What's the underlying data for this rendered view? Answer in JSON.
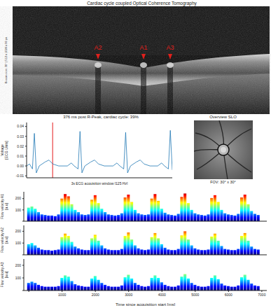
{
  "title": "Cardiac cycle coupled Optical Coherence Tomography",
  "oct_image": {
    "side_text": "B-scan size: 30° | 512 x 1024 x 96 px",
    "labels": [
      "A2",
      "A1",
      "A3"
    ]
  },
  "slo_image": {
    "title": "Overview SLO",
    "caption": "FOV: 30° x 30°"
  },
  "chart_data": [
    {
      "type": "line",
      "title": "376 ms post R-Peak, cardiac cycle: 39%",
      "x_label": "3s ECG acquisition window [125 Hz]",
      "y_label": "Voltage [ECG Units]",
      "x": [
        0,
        0.06,
        0.12,
        0.16,
        0.2,
        0.26,
        0.38,
        0.46,
        0.54,
        0.66,
        0.84,
        0.92,
        0.98,
        1.06,
        1.1,
        1.14,
        1.2,
        1.32,
        1.4,
        1.48,
        1.6,
        1.78,
        1.86,
        1.92,
        2.0,
        2.04,
        2.08,
        2.14,
        2.26,
        2.34,
        2.42,
        2.54,
        2.7,
        2.78,
        2.84,
        2.92,
        2.96,
        3.0
      ],
      "values": [
        0.0,
        0.002,
        -0.003,
        0.033,
        -0.007,
        0.0,
        0.004,
        0.006,
        0.002,
        0.0,
        0.0,
        0.003,
        0.0,
        -0.003,
        0.035,
        -0.007,
        0.0,
        0.004,
        0.006,
        0.002,
        0.0,
        0.0,
        0.003,
        0.0,
        -0.003,
        0.034,
        -0.007,
        0.0,
        0.004,
        0.006,
        0.002,
        0.0,
        0.0,
        0.003,
        0.0,
        -0.003,
        0.036,
        -0.004
      ],
      "color": "#1f77b4",
      "xlim": [
        0,
        3
      ],
      "ylim": [
        -0.012,
        0.044
      ],
      "yticks": [
        -0.01,
        {
          "value": 0,
          "label": "0.00"
        },
        0.01,
        0.02,
        0.03,
        0.04
      ],
      "tick_labels": "y",
      "marker_x": 0.536
    },
    {
      "type": "bar",
      "y_label": "Flow velocity A1 [a.u]",
      "x": [
        0,
        100,
        200,
        300,
        400,
        500,
        600,
        700,
        800,
        900,
        1000,
        1100,
        1200,
        1300,
        1400,
        1500,
        1600,
        1700,
        1800,
        1900,
        2000,
        2100,
        2200,
        2300,
        2400,
        2500,
        2600,
        2700,
        2800,
        2900,
        3000,
        3100,
        3200,
        3300,
        3400,
        3500,
        3600,
        3700,
        3800,
        3900,
        4000,
        4100,
        4200,
        4300,
        4400,
        4500,
        4600,
        4700,
        4800,
        4900,
        5000,
        5100,
        5200,
        5300,
        5400,
        5500,
        5600,
        5700,
        5800,
        5900,
        6000,
        6100,
        6200,
        6300,
        6400,
        6500,
        6600,
        6700,
        6800,
        6900
      ],
      "values": [
        120,
        130,
        110,
        80,
        60,
        55,
        50,
        50,
        45,
        60,
        200,
        240,
        220,
        150,
        100,
        80,
        60,
        55,
        60,
        190,
        230,
        160,
        110,
        80,
        60,
        55,
        50,
        55,
        70,
        210,
        235,
        170,
        100,
        70,
        60,
        55,
        60,
        200,
        240,
        180,
        110,
        75,
        60,
        55,
        50,
        65,
        215,
        245,
        160,
        100,
        70,
        60,
        55,
        50,
        60,
        205,
        230,
        170,
        100,
        70,
        60,
        55,
        50,
        65,
        210,
        235,
        150,
        90,
        65,
        55
      ],
      "xlim": [
        -150,
        7150
      ],
      "ylim": [
        0,
        260
      ],
      "yticks": [
        0,
        100,
        200
      ],
      "tick_labels": "y"
    },
    {
      "type": "bar",
      "y_label": "Flow velocity A2 [a.u]",
      "x": [
        0,
        100,
        200,
        300,
        400,
        500,
        600,
        700,
        800,
        900,
        1000,
        1100,
        1200,
        1300,
        1400,
        1500,
        1600,
        1700,
        1800,
        1900,
        2000,
        2100,
        2200,
        2300,
        2400,
        2500,
        2600,
        2700,
        2800,
        2900,
        3000,
        3100,
        3200,
        3300,
        3400,
        3500,
        3600,
        3700,
        3800,
        3900,
        4000,
        4100,
        4200,
        4300,
        4400,
        4500,
        4600,
        4700,
        4800,
        4900,
        5000,
        5100,
        5200,
        5300,
        5400,
        5500,
        5600,
        5700,
        5800,
        5900,
        6000,
        6100,
        6200,
        6300,
        6400,
        6500,
        6600,
        6700,
        6800,
        6900
      ],
      "values": [
        90,
        100,
        80,
        60,
        45,
        40,
        40,
        35,
        40,
        45,
        150,
        180,
        160,
        110,
        70,
        55,
        45,
        40,
        40,
        140,
        170,
        120,
        80,
        55,
        45,
        40,
        40,
        40,
        50,
        160,
        190,
        130,
        80,
        55,
        45,
        40,
        45,
        150,
        185,
        140,
        90,
        60,
        45,
        40,
        40,
        50,
        165,
        200,
        130,
        80,
        55,
        45,
        40,
        40,
        45,
        155,
        180,
        120,
        75,
        50,
        45,
        40,
        40,
        50,
        160,
        185,
        120,
        70,
        50,
        45
      ],
      "xlim": [
        -150,
        7150
      ],
      "ylim": [
        0,
        250
      ],
      "yticks": [
        0,
        100,
        200
      ],
      "tick_labels": "y"
    },
    {
      "type": "bar",
      "y_label": "Flow velocity A3 [a.u]",
      "x_label": "Time since acquisition start [ms]",
      "x": [
        0,
        100,
        200,
        300,
        400,
        500,
        600,
        700,
        800,
        900,
        1000,
        1100,
        1200,
        1300,
        1400,
        1500,
        1600,
        1700,
        1800,
        1900,
        2000,
        2100,
        2200,
        2300,
        2400,
        2500,
        2600,
        2700,
        2800,
        2900,
        3000,
        3100,
        3200,
        3300,
        3400,
        3500,
        3600,
        3700,
        3800,
        3900,
        4000,
        4100,
        4200,
        4300,
        4400,
        4500,
        4600,
        4700,
        4800,
        4900,
        5000,
        5100,
        5200,
        5300,
        5400,
        5500,
        5600,
        5700,
        5800,
        5900,
        6000,
        6100,
        6200,
        6300,
        6400,
        6500,
        6600,
        6700,
        6800,
        6900
      ],
      "values": [
        60,
        70,
        60,
        45,
        35,
        30,
        30,
        30,
        30,
        35,
        100,
        120,
        110,
        75,
        50,
        40,
        35,
        30,
        30,
        95,
        115,
        85,
        60,
        45,
        35,
        30,
        30,
        30,
        40,
        105,
        125,
        95,
        60,
        45,
        35,
        30,
        35,
        100,
        120,
        100,
        65,
        45,
        35,
        30,
        30,
        40,
        110,
        130,
        95,
        60,
        45,
        35,
        30,
        30,
        35,
        100,
        120,
        90,
        55,
        40,
        35,
        30,
        30,
        40,
        105,
        125,
        85,
        55,
        40,
        35
      ],
      "xlim": [
        -150,
        7150
      ],
      "ylim": [
        0,
        250
      ],
      "yticks": [
        0,
        100,
        200
      ],
      "xticks": [
        0,
        1000,
        2000,
        3000,
        4000,
        5000,
        6000,
        7000
      ]
    }
  ]
}
